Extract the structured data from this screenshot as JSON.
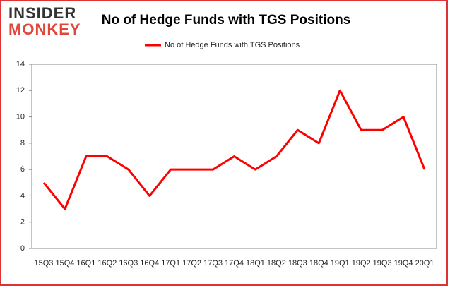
{
  "logo": {
    "top": "INSIDER",
    "bottom": "MONKEY"
  },
  "chart_data": {
    "type": "line",
    "title": "No of Hedge Funds with TGS Positions",
    "categories": [
      "15Q3",
      "15Q4",
      "16Q1",
      "16Q2",
      "16Q3",
      "16Q4",
      "17Q1",
      "17Q2",
      "17Q3",
      "17Q4",
      "18Q1",
      "18Q2",
      "18Q3",
      "18Q4",
      "19Q1",
      "19Q2",
      "19Q3",
      "19Q4",
      "20Q1"
    ],
    "series": [
      {
        "name": "No of Hedge Funds with TGS Positions",
        "color": "#ff0000",
        "values": [
          5,
          3,
          7,
          7,
          6,
          4,
          6,
          6,
          6,
          7,
          6,
          7,
          9,
          8,
          12,
          9,
          9,
          10,
          6
        ]
      }
    ],
    "ylim": [
      0,
      14
    ],
    "yticks": [
      0,
      2,
      4,
      6,
      8,
      10,
      12,
      14
    ],
    "grid": false,
    "legend": "top"
  }
}
